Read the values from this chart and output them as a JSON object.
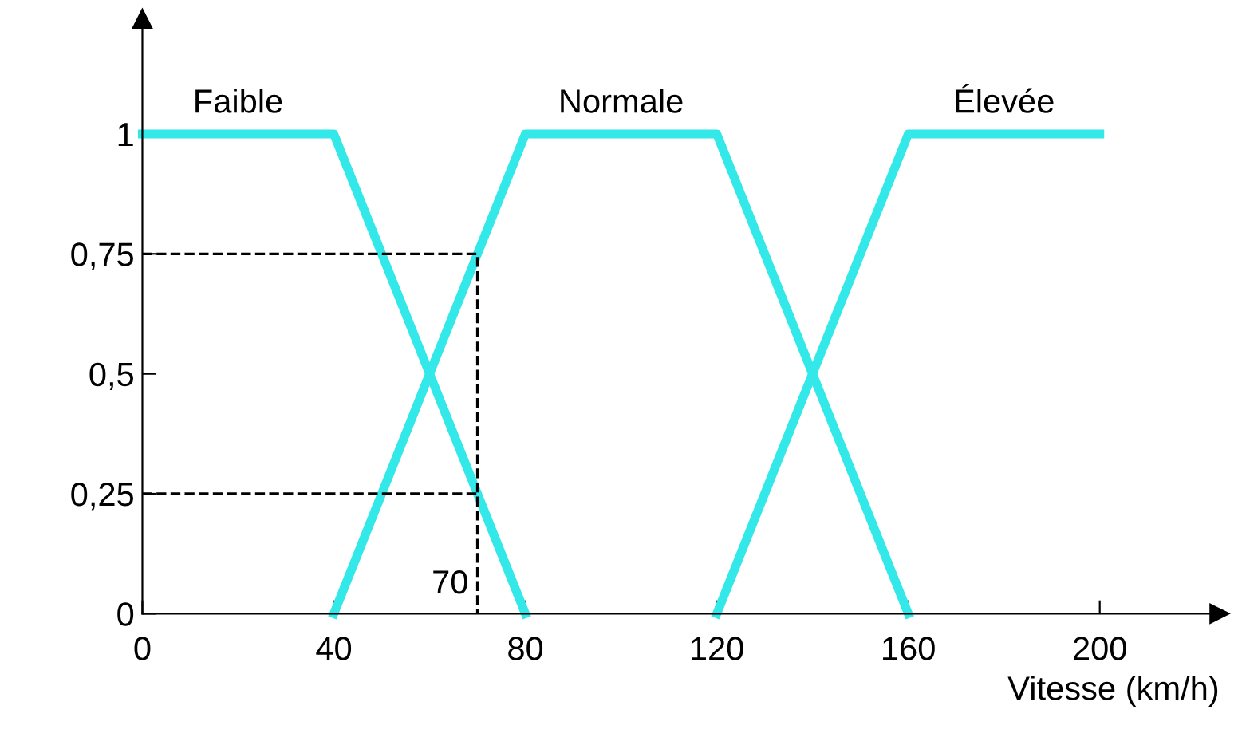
{
  "chart_data": {
    "type": "line",
    "xlabel": "Vitesse (km/h)",
    "xlim": [
      0,
      225
    ],
    "ylim": [
      0,
      1.24
    ],
    "xticks": [
      0,
      40,
      80,
      120,
      160,
      200
    ],
    "yticks": [
      0,
      {
        "value": 0.25,
        "label": "0,25"
      },
      {
        "value": 0.5,
        "label": "0,5"
      },
      {
        "value": 0.75,
        "label": "0,75"
      },
      1
    ],
    "grid": false,
    "legend": false,
    "marker": "none",
    "series": [
      {
        "name": "Faible",
        "color": "#33e8e8",
        "x": [
          0,
          40,
          80
        ],
        "values": [
          1,
          1,
          0
        ],
        "line_style": "solid"
      },
      {
        "name": "Normale",
        "color": "#33e8e8",
        "x": [
          40,
          80,
          120,
          160
        ],
        "values": [
          0,
          1,
          1,
          0
        ],
        "line_style": "solid"
      },
      {
        "name": "Élevée",
        "color": "#33e8e8",
        "x": [
          120,
          160,
          200
        ],
        "values": [
          0,
          1,
          1
        ],
        "line_style": "solid"
      },
      {
        "color": "#000000",
        "x": [
          0,
          70,
          70
        ],
        "values": [
          0.75,
          0.75,
          0
        ],
        "line_style": "dashed"
      },
      {
        "color": "#000000",
        "x": [
          0,
          70
        ],
        "values": [
          0.25,
          0.25
        ],
        "line_style": "dashed"
      }
    ],
    "annotations": [
      {
        "text": "70",
        "x": 70,
        "y": 0
      }
    ]
  }
}
